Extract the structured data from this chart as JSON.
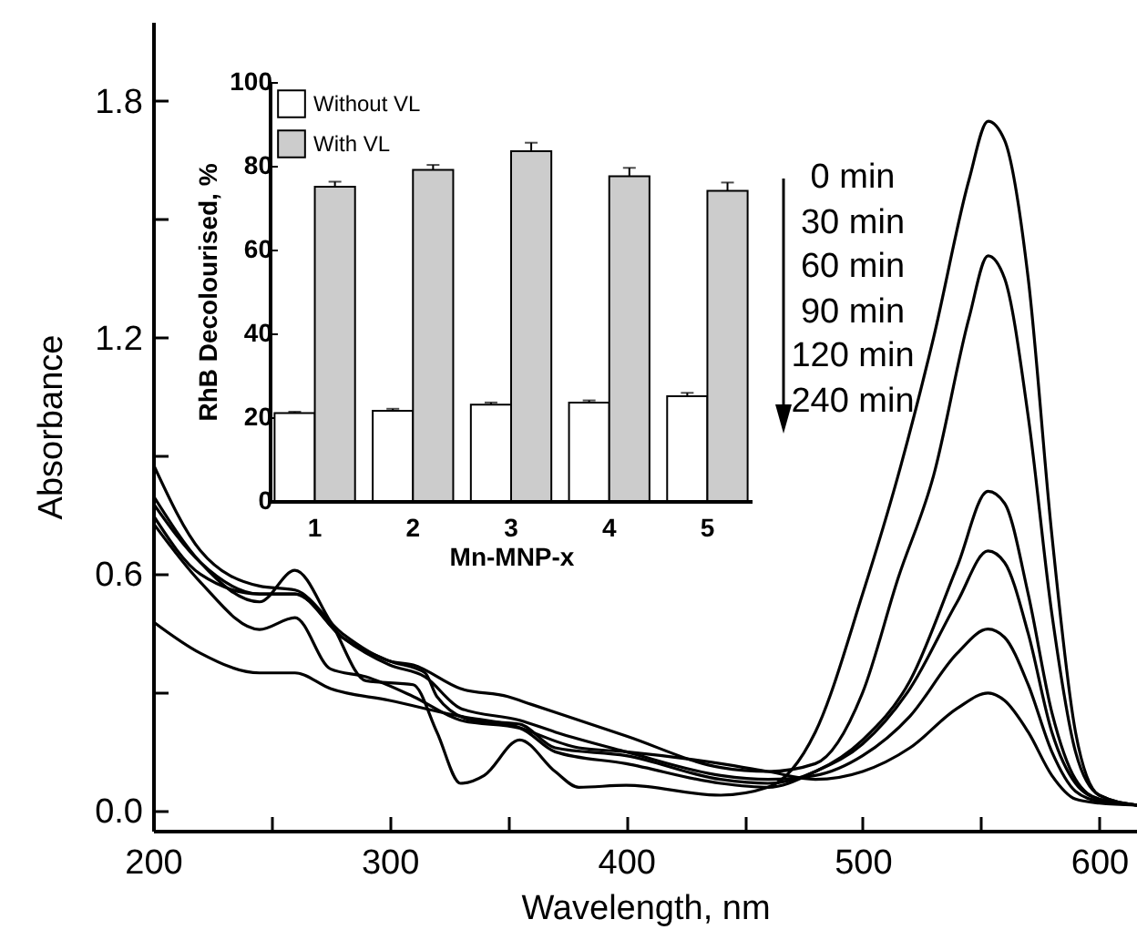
{
  "chart_data": [
    {
      "type": "line",
      "xlabel": "Wavelength, nm",
      "ylabel": "Absorbance",
      "xlim": [
        200,
        616
      ],
      "ylim": [
        -0.05,
        2.0
      ],
      "xticks": [
        200,
        {
          "value": 250,
          "label": null
        },
        300,
        {
          "value": 350,
          "label": null
        },
        400,
        {
          "value": 450,
          "label": null
        },
        500,
        {
          "value": 550,
          "label": null
        },
        600
      ],
      "yticks": [
        {
          "value": 0,
          "label": "0.0"
        },
        {
          "value": 0.3,
          "label": null
        },
        0.6,
        {
          "value": 0.9,
          "label": null
        },
        1.2,
        {
          "value": 1.5,
          "label": null
        },
        1.8
      ],
      "series": [
        {
          "color": "#000000",
          "x": [
            200,
            220,
            245,
            260,
            275,
            290,
            310,
            320,
            330,
            340,
            355,
            370,
            380,
            400,
            440,
            460,
            480,
            500,
            515,
            530,
            545,
            553,
            560,
            570,
            580,
            590,
            600,
            616
          ],
          "values": [
            0.8,
            0.63,
            0.53,
            0.61,
            0.48,
            0.33,
            0.32,
            0.2,
            0.07,
            0.09,
            0.18,
            0.1,
            0.06,
            0.065,
            0.04,
            0.06,
            0.2,
            0.55,
            0.85,
            1.2,
            1.6,
            1.748,
            1.7,
            1.35,
            0.7,
            0.2,
            0.04,
            0.015
          ]
        },
        {
          "color": "#000000",
          "x": [
            200,
            220,
            245,
            260,
            280,
            300,
            310,
            330,
            350,
            360,
            400,
            440,
            460,
            480,
            500,
            515,
            530,
            545,
            553,
            560,
            570,
            580,
            590,
            600,
            616
          ],
          "values": [
            0.88,
            0.66,
            0.57,
            0.56,
            0.45,
            0.38,
            0.37,
            0.31,
            0.29,
            0.27,
            0.19,
            0.11,
            0.1,
            0.12,
            0.3,
            0.59,
            0.85,
            1.25,
            1.407,
            1.35,
            1.0,
            0.5,
            0.15,
            0.04,
            0.015
          ]
        },
        {
          "color": "#000000",
          "x": [
            200,
            220,
            245,
            260,
            280,
            300,
            315,
            320,
            335,
            355,
            370,
            400,
            440,
            460,
            480,
            500,
            520,
            540,
            553,
            560,
            570,
            580,
            590,
            600,
            616
          ],
          "values": [
            0.78,
            0.63,
            0.55,
            0.55,
            0.44,
            0.38,
            0.35,
            0.29,
            0.23,
            0.22,
            0.16,
            0.14,
            0.08,
            0.07,
            0.1,
            0.18,
            0.33,
            0.62,
            0.81,
            0.78,
            0.55,
            0.25,
            0.08,
            0.03,
            0.015
          ]
        },
        {
          "color": "#000000",
          "x": [
            200,
            220,
            245,
            260,
            275,
            290,
            310,
            330,
            355,
            370,
            400,
            440,
            460,
            480,
            500,
            520,
            540,
            553,
            560,
            570,
            580,
            590,
            600,
            616
          ],
          "values": [
            0.73,
            0.58,
            0.46,
            0.49,
            0.36,
            0.34,
            0.29,
            0.23,
            0.21,
            0.15,
            0.12,
            0.07,
            0.06,
            0.1,
            0.17,
            0.31,
            0.53,
            0.659,
            0.63,
            0.45,
            0.2,
            0.07,
            0.03,
            0.015
          ]
        },
        {
          "color": "#000000",
          "x": [
            200,
            220,
            245,
            260,
            280,
            300,
            315,
            330,
            355,
            370,
            400,
            440,
            460,
            480,
            500,
            520,
            540,
            553,
            560,
            570,
            580,
            590,
            600,
            616
          ],
          "values": [
            0.75,
            0.6,
            0.55,
            0.55,
            0.44,
            0.37,
            0.34,
            0.26,
            0.23,
            0.2,
            0.15,
            0.09,
            0.08,
            0.09,
            0.14,
            0.24,
            0.4,
            0.461,
            0.44,
            0.32,
            0.15,
            0.05,
            0.025,
            0.015
          ]
        },
        {
          "color": "#000000",
          "x": [
            200,
            220,
            245,
            260,
            275,
            300,
            330,
            350,
            380,
            400,
            440,
            460,
            480,
            500,
            520,
            540,
            553,
            560,
            570,
            580,
            590,
            600,
            616
          ],
          "values": [
            0.48,
            0.4,
            0.35,
            0.35,
            0.31,
            0.28,
            0.24,
            0.22,
            0.16,
            0.15,
            0.12,
            0.1,
            0.08,
            0.1,
            0.16,
            0.26,
            0.299,
            0.28,
            0.2,
            0.09,
            0.03,
            0.02,
            0.015
          ]
        }
      ],
      "annotations": [
        "0 min",
        "30 min",
        "60 min",
        "90 min",
        "120 min",
        "240 min"
      ]
    },
    {
      "type": "bar",
      "xlabel": "Mn-MNP-x",
      "ylabel": "RhB Decolourised, %",
      "categories": [
        "1",
        "2",
        "3",
        "4",
        "5"
      ],
      "ylim": [
        0,
        100
      ],
      "yticks": [
        0,
        20,
        40,
        60,
        80,
        100
      ],
      "legend": "top left",
      "series": [
        {
          "name": "Without VL",
          "color": "#ffffff",
          "values": [
            21,
            21.5,
            23,
            23.5,
            25
          ],
          "errors": [
            0.3,
            0.5,
            0.5,
            0.5,
            0.8
          ]
        },
        {
          "name": "With VL",
          "color": "#cccccc",
          "values": [
            75,
            79,
            83.5,
            77.5,
            74
          ],
          "errors": [
            1.2,
            1.2,
            2,
            2,
            2
          ]
        }
      ]
    }
  ]
}
